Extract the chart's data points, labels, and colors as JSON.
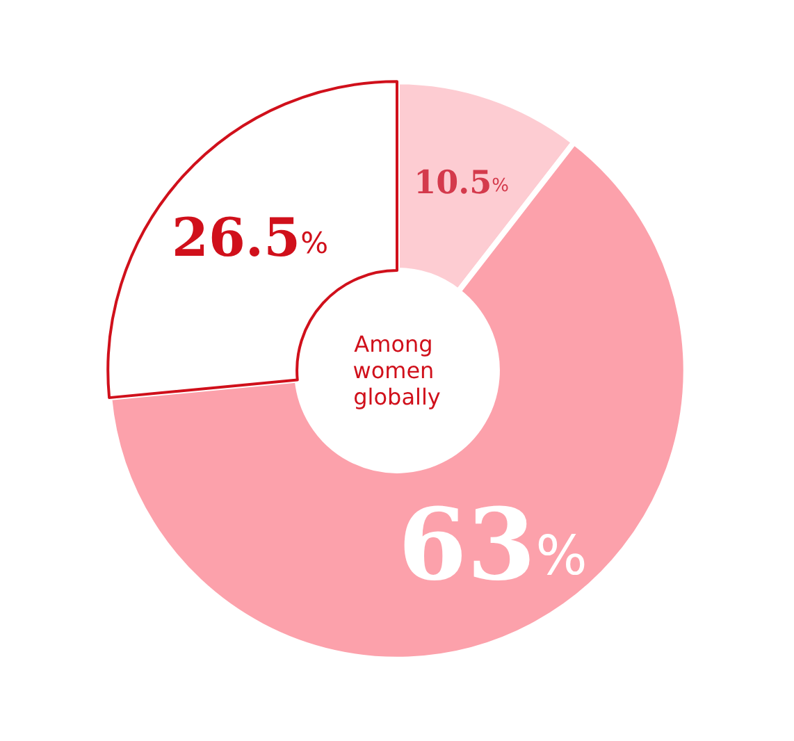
{
  "chart_data": {
    "type": "donut",
    "title": "Among women globally",
    "categories": [
      null,
      null,
      null
    ],
    "values": [
      10.5,
      63,
      26.5
    ],
    "colors": [
      "#fdccd2",
      "#fca1ab",
      "#ffffff"
    ],
    "value_labels": [
      "10.5%",
      "63%",
      "26.5%"
    ]
  }
}
